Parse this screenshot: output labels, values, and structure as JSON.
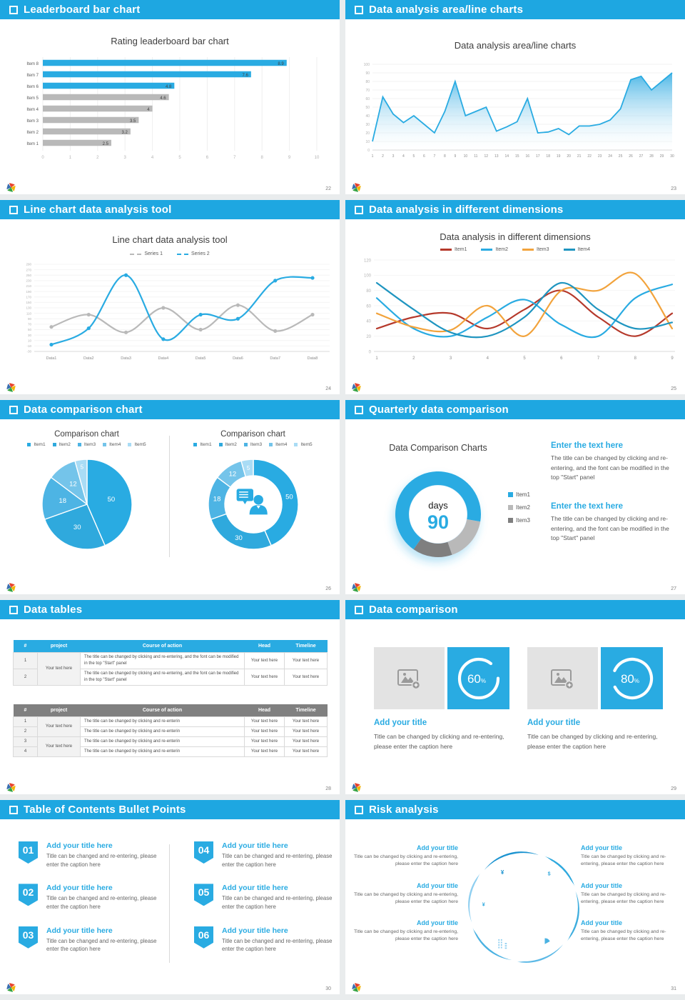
{
  "accent": "#29abe2",
  "slides": {
    "s22": {
      "header": "Leaderboard bar chart",
      "page_num": "22",
      "chart_data": {
        "type": "bar",
        "title": "Rating leaderboard bar chart",
        "categories": [
          "Item 8",
          "Item 7",
          "Item 6",
          "Item 5",
          "Item 4",
          "Item 3",
          "Item 2",
          "Item 1"
        ],
        "values": [
          8.9,
          7.6,
          4.8,
          4.6,
          4,
          3.5,
          3.2,
          2.5
        ],
        "colors": [
          "#29abe2",
          "#29abe2",
          "#29abe2",
          "#b9b9b9",
          "#b9b9b9",
          "#b9b9b9",
          "#b9b9b9",
          "#b9b9b9"
        ],
        "xlim": [
          0,
          10
        ],
        "xtick_step": 1
      }
    },
    "s23": {
      "header": "Data analysis area/line charts",
      "page_num": "23",
      "chart_data": {
        "type": "area",
        "title": "Data analysis area/line charts",
        "x": [
          1,
          2,
          3,
          4,
          5,
          6,
          7,
          8,
          9,
          10,
          11,
          12,
          13,
          14,
          15,
          16,
          17,
          18,
          19,
          20,
          21,
          22,
          23,
          24,
          25,
          26,
          27,
          28,
          29,
          30
        ],
        "values": [
          10,
          62,
          42,
          32,
          40,
          30,
          20,
          45,
          80,
          40,
          45,
          50,
          22,
          27,
          33,
          60,
          20,
          21,
          25,
          18,
          28,
          28,
          30,
          35,
          48,
          82,
          86,
          70,
          80,
          90
        ],
        "ylim": [
          0,
          100
        ],
        "ytick_step": 10,
        "line_color": "#29abe2"
      }
    },
    "s24": {
      "header": "Line chart data analysis tool",
      "page_num": "24",
      "chart_data": {
        "type": "line",
        "title": "Line chart data analysis tool",
        "categories": [
          "Data1",
          "Data2",
          "Data3",
          "Data4",
          "Data5",
          "Data6",
          "Data7",
          "Data8"
        ],
        "series": [
          {
            "name": "Series 1",
            "color": "#b9b9b9",
            "values": [
              60,
              105,
              40,
              130,
              50,
              140,
              45,
              105
            ]
          },
          {
            "name": "Series 2",
            "color": "#29abe2",
            "values": [
              -5,
              55,
              250,
              15,
              105,
              90,
              230,
              240
            ]
          }
        ],
        "ylim": [
          -30,
          290
        ],
        "ytick_step": 20
      }
    },
    "s25": {
      "header": "Data analysis in different dimensions",
      "page_num": "25",
      "chart_data": {
        "type": "line",
        "title": "Data analysis in different dimensions",
        "categories": [
          "1",
          "2",
          "3",
          "4",
          "5",
          "6",
          "7",
          "8",
          "9"
        ],
        "series": [
          {
            "name": "Item1",
            "color": "#b5392b",
            "values": [
              30,
              45,
              50,
              30,
              55,
              80,
              45,
              20,
              50
            ]
          },
          {
            "name": "Item2",
            "color": "#29abe2",
            "values": [
              70,
              30,
              20,
              45,
              68,
              35,
              20,
              70,
              88
            ]
          },
          {
            "name": "Item3",
            "color": "#f2a33c",
            "values": [
              50,
              32,
              28,
              60,
              20,
              80,
              80,
              102,
              30
            ]
          },
          {
            "name": "Item4",
            "color": "#1f95c0",
            "values": [
              90,
              55,
              25,
              20,
              45,
              90,
              55,
              30,
              38
            ]
          }
        ],
        "ylim": [
          0,
          120
        ],
        "ytick_step": 20
      }
    },
    "s26": {
      "header": "Data comparison chart",
      "page_num": "26",
      "charts": [
        {
          "type": "pie",
          "title": "Comparison chart",
          "labels": [
            "Item1",
            "Item2",
            "Item3",
            "Item4",
            "Item5"
          ],
          "values": [
            50,
            30,
            18,
            12,
            5
          ],
          "colors": [
            "#29abe2",
            "#2fa9dd",
            "#4db4e4",
            "#74c4ea",
            "#a9dcf5"
          ]
        },
        {
          "type": "donut",
          "title": "Comparison chart",
          "labels": [
            "Item1",
            "Item2",
            "Item3",
            "Item4",
            "Item5"
          ],
          "values": [
            50,
            30,
            18,
            12,
            5
          ],
          "colors": [
            "#29abe2",
            "#2fa9dd",
            "#4db4e4",
            "#74c4ea",
            "#a9dcf5"
          ],
          "center_icon": "person-chat-icon"
        }
      ]
    },
    "s27": {
      "header": "Quarterly data comparison",
      "page_num": "27",
      "chart_data": {
        "type": "donut",
        "title": "Data Comparison Charts",
        "labels": [
          "Item1",
          "Item2",
          "Item3"
        ],
        "values": [
          68,
          17,
          15
        ],
        "colors": [
          "#29abe2",
          "#b9b9b9",
          "#7f7f7f"
        ],
        "start_angle": 215,
        "center_top": "days",
        "center_value": "90"
      },
      "blocks": [
        {
          "title": "Enter the text here",
          "body": "The title can be changed by clicking and re-entering, and the font can be modified in the top \"Start\" panel"
        },
        {
          "title": "Enter the text here",
          "body": "The title can be changed by clicking and re-entering, and the font can be modified in the top \"Start\" panel"
        }
      ]
    },
    "s28": {
      "header": "Data tables",
      "page_num": "28",
      "table1": {
        "header_bg": "#29abe2",
        "headers": [
          "#",
          "project",
          "Course of action",
          "Head",
          "Timeline"
        ],
        "project": "Your text here",
        "project_group": 2,
        "rows": [
          {
            "num": "1",
            "course": "The title can be changed by clicking and re-entering, and the font can be modified in the top \"Start\" panel",
            "head": "Your text here",
            "timeline": "Your text here"
          },
          {
            "num": "2",
            "course": "The title can be changed by clicking and re-entering, and the font can be modified in the top \"Start\" panel",
            "head": "Your text here",
            "timeline": "Your text here"
          }
        ]
      },
      "table2": {
        "header_bg": "#808080",
        "headers": [
          "#",
          "project",
          "Course of action",
          "Head",
          "Timeline"
        ],
        "project": "Your text here",
        "project_group": 2,
        "rows": [
          {
            "num": "1",
            "course": "The title can be changed by clicking and re-enterin",
            "head": "Your text here",
            "timeline": "Your text here"
          },
          {
            "num": "2",
            "course": "The title can be changed by clicking and re-enterin",
            "head": "Your text here",
            "timeline": "Your text here"
          },
          {
            "num": "3",
            "course": "The title can be changed by clicking and re-enterin",
            "head": "Your text here",
            "timeline": "Your text here"
          },
          {
            "num": "4",
            "course": "The title can be changed by clicking and re-enterin",
            "head": "Your text here",
            "timeline": "Your text here"
          }
        ]
      }
    },
    "s29": {
      "header": "Data comparison",
      "page_num": "29",
      "cards": [
        {
          "percent": "60",
          "title": "Add your title",
          "caption": "Title can be changed by clicking and re-entering, please enter the caption here"
        },
        {
          "percent": "80",
          "title": "Add your title",
          "caption": "Title can be changed by clicking and re-entering, please enter the caption here"
        }
      ]
    },
    "s30": {
      "header": "Table of Contents Bullet Points",
      "page_num": "30",
      "items": [
        {
          "num": "01",
          "title": "Add your title here",
          "caption": "Title can be changed and re-entering, please enter the caption here"
        },
        {
          "num": "02",
          "title": "Add your title here",
          "caption": "Title can be changed and re-entering, please enter the caption here"
        },
        {
          "num": "03",
          "title": "Add your title here",
          "caption": "Title can be changed and re-entering, please enter the caption here"
        },
        {
          "num": "04",
          "title": "Add your title here",
          "caption": "Title can be changed and re-entering, please enter the caption here"
        },
        {
          "num": "05",
          "title": "Add your title here",
          "caption": "Title can be changed and re-entering, please enter the caption here"
        },
        {
          "num": "06",
          "title": "Add your title here",
          "caption": "Title can be changed and re-entering, please enter the caption here"
        }
      ]
    },
    "s31": {
      "header": "Risk analysis",
      "page_num": "31",
      "icons": [
        "money-bag-icon",
        "coins-icon",
        "people-icon",
        "pie-chart-icon",
        "building-icon",
        "hand-coin-icon"
      ],
      "items": [
        {
          "title": "Add your title",
          "caption": "Title can be changed by clicking and re-entering, please enter the caption here"
        },
        {
          "title": "Add your title",
          "caption": "Title can be changed by clicking and re-entering, please enter the caption here"
        },
        {
          "title": "Add your title",
          "caption": "Title can be changed by clicking and re-entering, please enter the caption here"
        },
        {
          "title": "Add your title",
          "caption": "Title can be changed by clicking and re-entering, please enter the caption here"
        },
        {
          "title": "Add your title",
          "caption": "Title can be changed by clicking and re-entering, please enter the caption here"
        },
        {
          "title": "Add your title",
          "caption": "Title can be changed by clicking and re-entering, please enter the caption here"
        }
      ]
    }
  }
}
